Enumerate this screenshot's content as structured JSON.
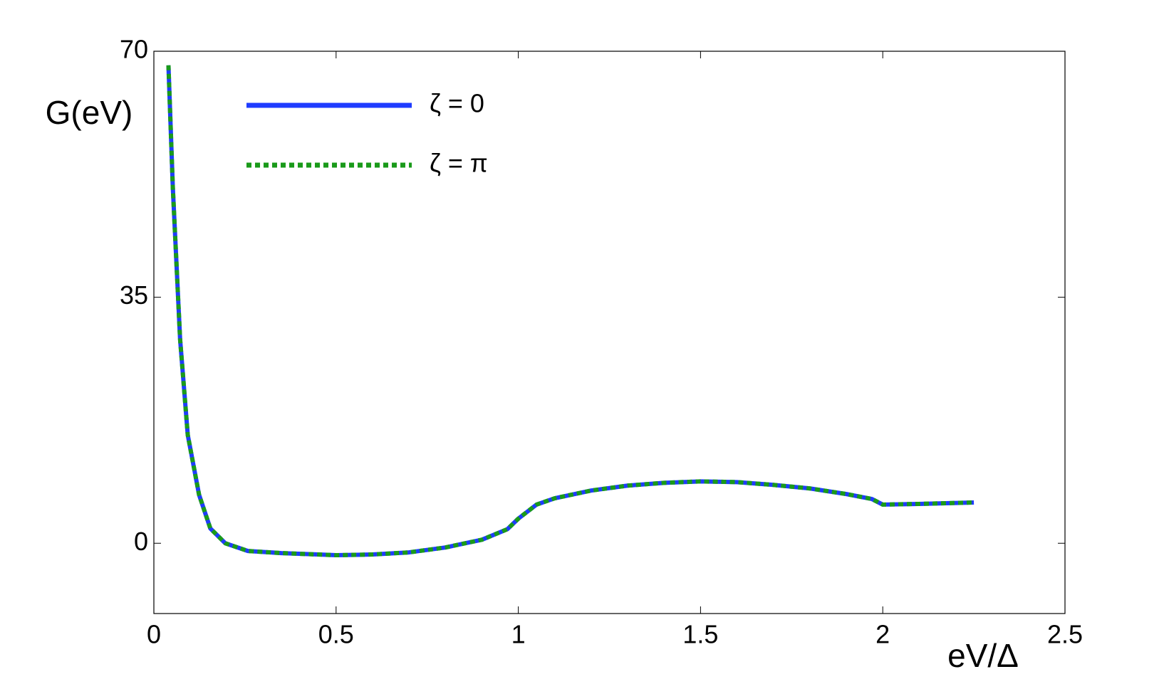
{
  "chart_data": {
    "type": "line",
    "y_label": "G(eV)",
    "x_label": "eV/Δ",
    "x": [
      0.04,
      0.052,
      0.072,
      0.093,
      0.124,
      0.155,
      0.196,
      0.258,
      0.35,
      0.45,
      0.5,
      0.6,
      0.7,
      0.8,
      0.9,
      0.97,
      1.0,
      1.05,
      1.1,
      1.2,
      1.3,
      1.4,
      1.5,
      1.6,
      1.7,
      1.8,
      1.9,
      1.97,
      2.0,
      2.1,
      2.25
    ],
    "series": [
      {
        "name": "ζ = 0",
        "color": "#1f3cff",
        "style": "solid",
        "values": [
          68,
          50.6,
          29,
          15.4,
          6.9,
          2.1,
          0,
          -1.1,
          -1.4,
          -1.6,
          -1.7,
          -1.6,
          -1.3,
          -0.6,
          0.5,
          2,
          3.5,
          5.5,
          6.4,
          7.5,
          8.2,
          8.6,
          8.8,
          8.7,
          8.3,
          7.8,
          7.0,
          6.3,
          5.5,
          5.6,
          5.8
        ]
      },
      {
        "name": "ζ = π",
        "color": "#1a9a1a",
        "style": "dotted",
        "values": [
          68,
          50.6,
          29,
          15.4,
          6.9,
          2.1,
          0,
          -1.1,
          -1.4,
          -1.6,
          -1.7,
          -1.6,
          -1.3,
          -0.6,
          0.5,
          2,
          3.5,
          5.5,
          6.4,
          7.5,
          8.2,
          8.6,
          8.8,
          8.7,
          8.3,
          7.8,
          7.0,
          6.3,
          5.5,
          5.6,
          5.8
        ]
      }
    ],
    "xlim": [
      0,
      2.5
    ],
    "ylim": [
      -10,
      70
    ],
    "xticks": [
      0,
      0.5,
      1,
      1.5,
      2,
      2.5
    ],
    "yticks": [
      0,
      35,
      70
    ],
    "legend": "upper-left"
  }
}
